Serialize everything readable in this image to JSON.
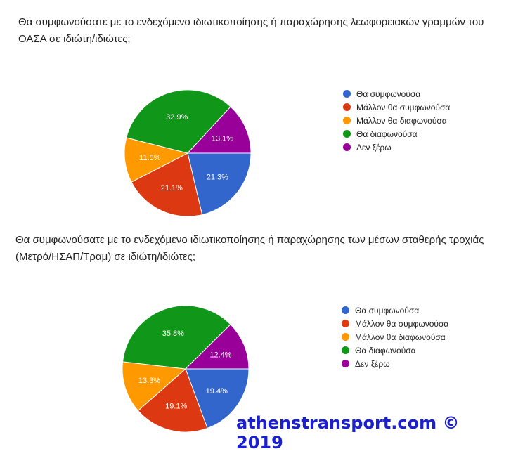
{
  "chart_data": [
    {
      "type": "pie",
      "title": "Θα συμφωνούσατε με το ενδεχόμενο ιδιωτικοποίησης ή παραχώρησης λεωφορειακών γραμμών του ΟΑΣΑ σε ιδιώτη/ιδιώτες;",
      "categories": [
        "Θα συμφωνούσα",
        "Μάλλον θα συμφωνούσα",
        "Μάλλον θα διαφωνούσα",
        "Θα διαφωνούσα",
        "Δεν ξέρω"
      ],
      "values": [
        21.3,
        21.1,
        11.5,
        32.9,
        13.1
      ],
      "labels": [
        "21.3%",
        "21.1%",
        "11.5%",
        "32.9%",
        "13.1%"
      ],
      "colors": [
        "#3366cc",
        "#dc3912",
        "#ff9900",
        "#109618",
        "#990099"
      ],
      "legend": "right"
    },
    {
      "type": "pie",
      "title": "Θα συμφωνούσατε με το ενδεχόμενο ιδιωτικοποίησης ή παραχώρησης των μέσων σταθερής τροχιάς (Μετρό/ΗΣΑΠ/Τραμ) σε ιδιώτη/ιδιώτες;",
      "categories": [
        "Θα συμφωνούσα",
        "Μάλλον θα συμφωνούσα",
        "Μάλλον θα διαφωνούσα",
        "Θα διαφωνούσα",
        "Δεν ξέρω"
      ],
      "values": [
        19.4,
        19.1,
        13.3,
        35.8,
        12.4
      ],
      "labels": [
        "19.4%",
        "19.1%",
        "13.3%",
        "35.8%",
        "12.4%"
      ],
      "colors": [
        "#3366cc",
        "#dc3912",
        "#ff9900",
        "#109618",
        "#990099"
      ],
      "legend": "right"
    }
  ],
  "watermark": "athenstransport.com © 2019"
}
